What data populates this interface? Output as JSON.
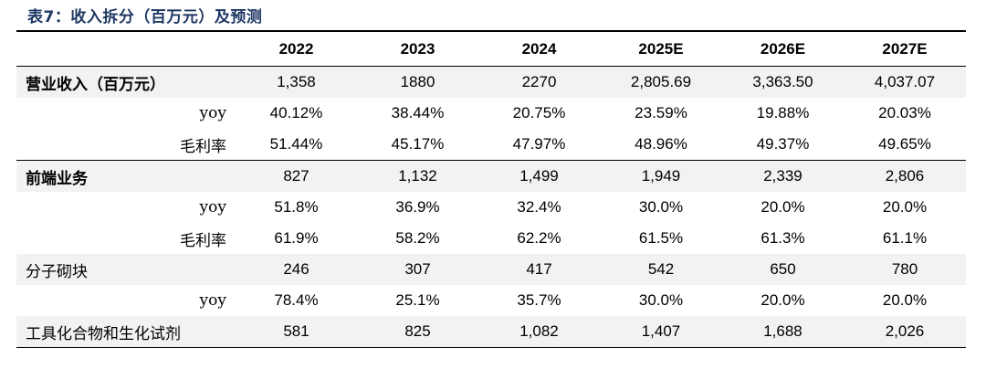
{
  "caption": "表7：收入拆分（百万元）及预测",
  "columns": [
    "2022",
    "2023",
    "2024",
    "2025E",
    "2026E",
    "2027E"
  ],
  "rows": [
    {
      "label": "营业收入（百万元）",
      "values": [
        "1,358",
        "1880",
        "2270",
        "2,805.69",
        "3,363.50",
        "4,037.07"
      ]
    },
    {
      "label": "yoy",
      "values": [
        "40.12%",
        "38.44%",
        "20.75%",
        "23.59%",
        "19.88%",
        "20.03%"
      ]
    },
    {
      "label": "毛利率",
      "values": [
        "51.44%",
        "45.17%",
        "47.97%",
        "48.96%",
        "49.37%",
        "49.65%"
      ]
    },
    {
      "label": "前端业务",
      "values": [
        "827",
        "1,132",
        "1,499",
        "1,949",
        "2,339",
        "2,806"
      ]
    },
    {
      "label": "yoy",
      "values": [
        "51.8%",
        "36.9%",
        "32.4%",
        "30.0%",
        "20.0%",
        "20.0%"
      ]
    },
    {
      "label": "毛利率",
      "values": [
        "61.9%",
        "58.2%",
        "62.2%",
        "61.5%",
        "61.3%",
        "61.1%"
      ]
    },
    {
      "label": "分子砌块",
      "values": [
        "246",
        "307",
        "417",
        "542",
        "650",
        "780"
      ]
    },
    {
      "label": "yoy",
      "values": [
        "78.4%",
        "25.1%",
        "35.7%",
        "30.0%",
        "20.0%",
        "20.0%"
      ]
    },
    {
      "label": "工具化合物和生化试剂",
      "values": [
        "581",
        "825",
        "1,082",
        "1,407",
        "1,688",
        "2,026"
      ]
    }
  ],
  "colors": {
    "caption": "#1f3864",
    "row_shade": "#f2f2f2",
    "rule": "#000000"
  }
}
